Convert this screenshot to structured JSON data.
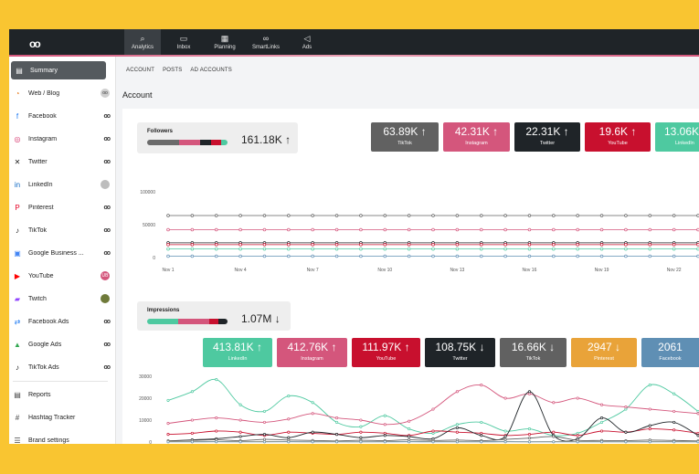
{
  "topnav": [
    {
      "label": "Analytics",
      "icon": "magnifier-chart-icon",
      "glyph": "⌕"
    },
    {
      "label": "Inbox",
      "icon": "chat-bubbles-icon",
      "glyph": "▭"
    },
    {
      "label": "Planning",
      "icon": "calendar-icon",
      "glyph": "▦"
    },
    {
      "label": "SmartLinks",
      "icon": "link-icon",
      "glyph": "∞"
    },
    {
      "label": "Ads",
      "icon": "megaphone-icon",
      "glyph": "◁"
    }
  ],
  "sidebar": [
    {
      "label": "Summary",
      "icon": "summary-icon",
      "glyph": "▤",
      "color": "#ffffff"
    },
    {
      "label": "Web / Blog",
      "icon": "rss-icon",
      "glyph": "◔",
      "color": "#e77c1e"
    },
    {
      "label": "Facebook",
      "icon": "facebook-icon",
      "glyph": "f",
      "color": "#1877f2"
    },
    {
      "label": "Instagram",
      "icon": "instagram-icon",
      "glyph": "◎",
      "color": "#d6336c"
    },
    {
      "label": "Twitter",
      "icon": "x-twitter-icon",
      "glyph": "✕",
      "color": "#222222"
    },
    {
      "label": "LinkedIn",
      "icon": "linkedin-icon",
      "glyph": "in",
      "color": "#0a66c2"
    },
    {
      "label": "Pinterest",
      "icon": "pinterest-icon",
      "glyph": "P",
      "color": "#e60023"
    },
    {
      "label": "TikTok",
      "icon": "tiktok-icon",
      "glyph": "♪",
      "color": "#111111"
    },
    {
      "label": "Google Business ...",
      "icon": "google-business-icon",
      "glyph": "▣",
      "color": "#4285f4"
    },
    {
      "label": "YouTube",
      "icon": "youtube-icon",
      "glyph": "▶",
      "color": "#ff0000"
    },
    {
      "label": "Twitch",
      "icon": "twitch-icon",
      "glyph": "▰",
      "color": "#9146ff"
    },
    {
      "label": "Facebook Ads",
      "icon": "facebook-ads-icon",
      "glyph": "⇄",
      "color": "#1877f2"
    },
    {
      "label": "Google Ads",
      "icon": "google-ads-icon",
      "glyph": "▲",
      "color": "#34a853"
    },
    {
      "label": "TikTok Ads",
      "icon": "tiktok-ads-icon",
      "glyph": "♪",
      "color": "#111111"
    },
    {
      "label": "Reports",
      "icon": "reports-icon",
      "glyph": "▤",
      "color": "#444444"
    },
    {
      "label": "Hashtag Tracker",
      "icon": "hashtag-icon",
      "glyph": "#",
      "color": "#444444"
    },
    {
      "label": "Brand settings",
      "icon": "settings-icon",
      "glyph": "☰",
      "color": "#444444"
    }
  ],
  "subtabs": [
    "ACCOUNT",
    "POSTS",
    "AD ACCOUNTS"
  ],
  "page_title": "Account",
  "followers": {
    "title": "Followers",
    "total": "161.18K",
    "trend": "↑",
    "share": [
      {
        "color": "#6b6b6b",
        "value": 40
      },
      {
        "color": "#d4567c",
        "value": 26
      },
      {
        "color": "#1f2428",
        "value": 14
      },
      {
        "color": "#c8102e",
        "value": 12
      },
      {
        "color": "#4ec9a0",
        "value": 8
      }
    ],
    "stats": [
      {
        "value": "63.89K ↑",
        "label": "TikTok",
        "color": "#616161"
      },
      {
        "value": "42.31K ↑",
        "label": "Instagram",
        "color": "#d4567c"
      },
      {
        "value": "22.31K ↑",
        "label": "Twitter",
        "color": "#1f2428"
      },
      {
        "value": "19.6K ↑",
        "label": "YouTube",
        "color": "#c8102e"
      },
      {
        "value": "13.06K",
        "label": "LinkedIn",
        "color": "#4ec9a0"
      }
    ]
  },
  "impressions": {
    "title": "Impressions",
    "total": "1.07M",
    "trend": "↓",
    "share": [
      {
        "color": "#4ec9a0",
        "value": 39
      },
      {
        "color": "#d4567c",
        "value": 38
      },
      {
        "color": "#c8102e",
        "value": 12
      },
      {
        "color": "#1f2428",
        "value": 11
      }
    ],
    "stats": [
      {
        "value": "413.81K ↑",
        "label": "LinkedIn",
        "color": "#4ec9a0"
      },
      {
        "value": "412.76K ↑",
        "label": "Instagram",
        "color": "#d4567c"
      },
      {
        "value": "111.97K ↑",
        "label": "YouTube",
        "color": "#c8102e"
      },
      {
        "value": "108.75K ↓",
        "label": "Twitter",
        "color": "#1f2428"
      },
      {
        "value": "16.66K ↓",
        "label": "TikTok",
        "color": "#616161"
      },
      {
        "value": "2947 ↓",
        "label": "Pinterest",
        "color": "#e9a339"
      },
      {
        "value": "2061",
        "label": "Facebook",
        "color": "#5f8fb4"
      }
    ]
  },
  "chart_data": [
    {
      "type": "line",
      "title": "Followers",
      "x": [
        "Nov 1",
        "Nov 2",
        "Nov 3",
        "Nov 4",
        "Nov 5",
        "Nov 6",
        "Nov 7",
        "Nov 8",
        "Nov 9",
        "Nov 10",
        "Nov 11",
        "Nov 12",
        "Nov 13",
        "Nov 14",
        "Nov 15",
        "Nov 16",
        "Nov 17",
        "Nov 18",
        "Nov 19",
        "Nov 20",
        "Nov 21",
        "Nov 22",
        "Nov 23"
      ],
      "xticks": [
        "Nov 1",
        "Nov 4",
        "Nov 7",
        "Nov 10",
        "Nov 13",
        "Nov 16",
        "Nov 19",
        "Nov 22"
      ],
      "yticks": [
        "100000",
        "50000",
        "0"
      ],
      "ylim": [
        0,
        100000
      ],
      "series": [
        {
          "color": "#616161",
          "values": [
            63890,
            63890,
            63890,
            63890,
            63890,
            63890,
            63890,
            63890,
            63890,
            63890,
            63890,
            63890,
            63890,
            63890,
            63890,
            63890,
            63890,
            63890,
            63890,
            63890,
            63890,
            63890,
            63890
          ]
        },
        {
          "color": "#d4567c",
          "values": [
            42310,
            42310,
            42310,
            42310,
            42310,
            42310,
            42310,
            42310,
            42310,
            42310,
            42310,
            42310,
            42310,
            42310,
            42310,
            42310,
            42310,
            42310,
            42310,
            42310,
            42310,
            42310,
            42310
          ]
        },
        {
          "color": "#1f2428",
          "values": [
            22310,
            22310,
            22310,
            22310,
            22310,
            22310,
            22310,
            22310,
            22310,
            22310,
            22310,
            22310,
            22310,
            22310,
            22310,
            22310,
            22310,
            22310,
            22310,
            22310,
            22310,
            22310,
            22310
          ]
        },
        {
          "color": "#c8102e",
          "values": [
            19600,
            19600,
            19600,
            19600,
            19600,
            19600,
            19600,
            19600,
            19600,
            19600,
            19600,
            19600,
            19600,
            19600,
            19600,
            19600,
            19600,
            19600,
            19600,
            19600,
            19600,
            19600,
            19600
          ]
        },
        {
          "color": "#4ec9a0",
          "values": [
            13060,
            13060,
            13060,
            13060,
            13060,
            13060,
            13060,
            13060,
            13060,
            13060,
            13060,
            13060,
            13060,
            13060,
            13060,
            13060,
            13060,
            13060,
            13060,
            13060,
            13060,
            13060,
            13060
          ]
        },
        {
          "color": "#5f8fb4",
          "values": [
            2000,
            2000,
            2000,
            2000,
            2000,
            2000,
            2000,
            2000,
            2000,
            2000,
            2000,
            2000,
            2000,
            2000,
            2000,
            2000,
            2000,
            2000,
            2000,
            2000,
            2000,
            2000,
            2000
          ]
        }
      ]
    },
    {
      "type": "line",
      "title": "Impressions",
      "x": [
        "Nov 1",
        "Nov 2",
        "Nov 3",
        "Nov 4",
        "Nov 5",
        "Nov 6",
        "Nov 7",
        "Nov 8",
        "Nov 9",
        "Nov 10",
        "Nov 11",
        "Nov 12",
        "Nov 13",
        "Nov 14",
        "Nov 15",
        "Nov 16",
        "Nov 17",
        "Nov 18",
        "Nov 19",
        "Nov 20",
        "Nov 21",
        "Nov 22",
        "Nov 23"
      ],
      "xticks": [
        "Nov 1",
        "Nov 4",
        "Nov 7",
        "Nov 10",
        "Nov 13",
        "Nov 16",
        "Nov 19",
        "Nov 22"
      ],
      "yticks": [
        "30000",
        "20000",
        "10000",
        "0"
      ],
      "ylim": [
        0,
        30000
      ],
      "series": [
        {
          "color": "#4ec9a0",
          "values": [
            19000,
            23000,
            28500,
            17000,
            14000,
            21000,
            18000,
            9000,
            7000,
            12000,
            6000,
            4000,
            8000,
            9000,
            5000,
            6000,
            3000,
            4000,
            9000,
            15000,
            26000,
            22000,
            14000
          ]
        },
        {
          "color": "#d4567c",
          "values": [
            8500,
            10000,
            11000,
            10000,
            9000,
            10500,
            13000,
            11000,
            10000,
            8000,
            9500,
            15000,
            23000,
            26000,
            20000,
            22000,
            18000,
            20000,
            17000,
            16000,
            15000,
            14000,
            13000
          ]
        },
        {
          "color": "#c8102e",
          "values": [
            3500,
            4000,
            5000,
            4500,
            3000,
            4500,
            4000,
            3500,
            4500,
            4000,
            3000,
            5000,
            4500,
            4000,
            3000,
            3500,
            4500,
            3000,
            5000,
            4500,
            6000,
            5500,
            4000
          ]
        },
        {
          "color": "#1f2428",
          "values": [
            500,
            1000,
            1500,
            2500,
            3500,
            2000,
            4500,
            3500,
            2000,
            3000,
            2500,
            1500,
            6500,
            3000,
            2500,
            23000,
            3000,
            1500,
            11000,
            4500,
            7500,
            9000,
            3000
          ]
        },
        {
          "color": "#616161",
          "values": [
            500,
            800,
            1000,
            600,
            1200,
            900,
            700,
            500,
            800,
            600,
            1000,
            700,
            900,
            600,
            1200,
            1800,
            2500,
            800,
            700,
            600,
            900,
            700,
            500
          ]
        },
        {
          "color": "#e9a339",
          "values": [
            200,
            150,
            180,
            160,
            190,
            170,
            140,
            150,
            130,
            160,
            180,
            170,
            150,
            140,
            160,
            130,
            150,
            170,
            160,
            140,
            150,
            160,
            140
          ]
        },
        {
          "color": "#5f8fb4",
          "values": [
            100,
            90,
            110,
            100,
            95,
            105,
            90,
            100,
            95,
            100,
            110,
            90,
            100,
            95,
            105,
            90,
            100,
            95,
            100,
            90,
            100,
            95,
            100
          ]
        }
      ]
    }
  ]
}
